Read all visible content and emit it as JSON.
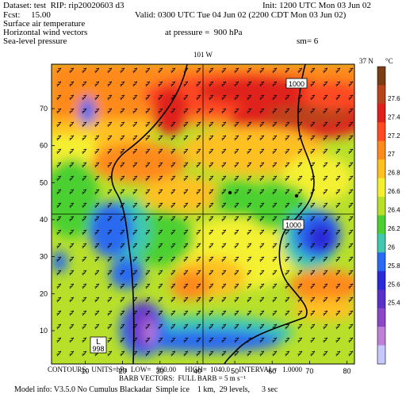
{
  "header": {
    "dataset_line": "Dataset: test  RIP: rip20020603 d3",
    "init_line": "Init: 1200 UTC Mon 03 Jun 02",
    "fcst_line": "Fcst:     15.00",
    "valid_line": "Valid: 0300 UTC Tue 04 Jun 02 (2200 CDT Mon 03 Jun 02)",
    "field1": "Surface air temperature",
    "field2": "Horizontal wind vectors",
    "field3": "Sea-level pressure",
    "pressure_line": "at pressure =  900 hPa",
    "sm_line": "sm= 6"
  },
  "map": {
    "top_label": "101 W",
    "right_label": "37 N",
    "x_ticks": [
      "10",
      "20",
      "30",
      "40",
      "50",
      "60",
      "70",
      "80"
    ],
    "y_ticks": [
      "10",
      "20",
      "30",
      "40",
      "50",
      "60",
      "70"
    ],
    "contour_labels": [
      "1000",
      "1000"
    ],
    "low_marker": "L",
    "low_value": "998"
  },
  "colorbar": {
    "unit": "°C",
    "labels": [
      "27.6",
      "27.4",
      "27.2",
      "27",
      "26.8",
      "26.6",
      "26.4",
      "26.2",
      "26",
      "25.8",
      "25.6",
      "25.4"
    ],
    "colors": [
      "#7a3d14",
      "#b8441c",
      "#e0201a",
      "#ff4a22",
      "#ff8a1c",
      "#ffc020",
      "#f4f030",
      "#b8e02a",
      "#4cd030",
      "#40c8b0",
      "#2a6af0",
      "#2a2ad8",
      "#5a30c8",
      "#8a48c8",
      "#c080d8",
      "#c8c8ff"
    ]
  },
  "footer": {
    "line1": "CONTOURS:  UNITS=hPa  LOW=   960.00     HIGH=  1040.0     INTERVAL=   1.0000",
    "line2": "BARB VECTORS:  FULL BARB = 5 m s⁻¹",
    "line3": "Model info: V3.5.0 No Cumulus Blackadar  Simple ice    1 km,  29 levels,      3 sec"
  }
}
